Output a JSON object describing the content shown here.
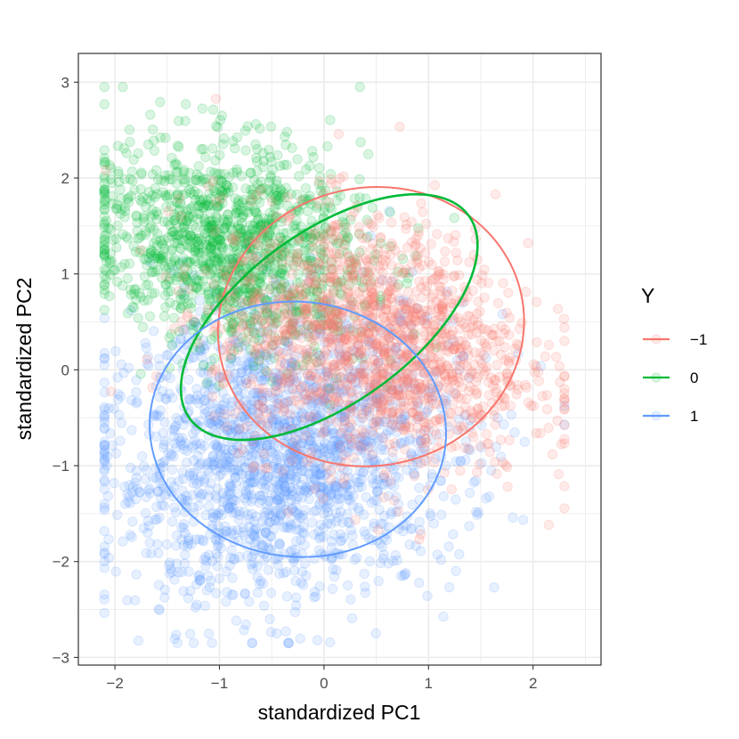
{
  "chart_data": {
    "type": "scatter",
    "xlabel": "standardized PC1",
    "ylabel": "standardized PC2",
    "xlim": [
      -2.35,
      2.65
    ],
    "ylim": [
      -3.08,
      3.3
    ],
    "xticks": [
      -2,
      -1,
      0,
      1,
      2
    ],
    "yticks": [
      -3,
      -2,
      -1,
      0,
      1,
      2,
      3
    ],
    "xtick_labels": [
      "−2",
      "−1",
      "0",
      "1",
      "2"
    ],
    "ytick_labels": [
      "−3",
      "−2",
      "−1",
      "0",
      "1",
      "2",
      "3"
    ],
    "grid": true,
    "point_alpha": 0.15,
    "legend": {
      "title": "Y",
      "position": "right",
      "entries": [
        {
          "label": "−1",
          "color": "#F8766D"
        },
        {
          "label": "0",
          "color": "#00BA38"
        },
        {
          "label": "1",
          "color": "#619CFF"
        }
      ]
    },
    "series": [
      {
        "key": "minus1",
        "color": "#F8766D",
        "cloud": {
          "cx": 0.45,
          "cy": 0.3,
          "sx": 0.75,
          "sy": 0.65,
          "rho": -0.2,
          "n": 1600
        },
        "ellipse": {
          "cx": 0.45,
          "cy": 0.45,
          "a": 1.47,
          "b": 1.33,
          "angle": -12
        }
      },
      {
        "key": "0",
        "color": "#00BA38",
        "cloud": {
          "cx": -0.9,
          "cy": 1.3,
          "sx": 0.65,
          "sy": 0.55,
          "rho": -0.2,
          "n": 1300
        },
        "ellipse": {
          "cx": 0.05,
          "cy": 0.55,
          "a": 1.65,
          "b": 0.82,
          "angle": -36
        }
      },
      {
        "key": "1",
        "color": "#619CFF",
        "cloud": {
          "cx": -0.4,
          "cy": -0.9,
          "sx": 0.85,
          "sy": 0.75,
          "rho": 0.1,
          "n": 1900
        },
        "ellipse": {
          "cx": -0.25,
          "cy": -0.62,
          "a": 1.42,
          "b": 1.22,
          "angle": 6
        }
      }
    ]
  }
}
